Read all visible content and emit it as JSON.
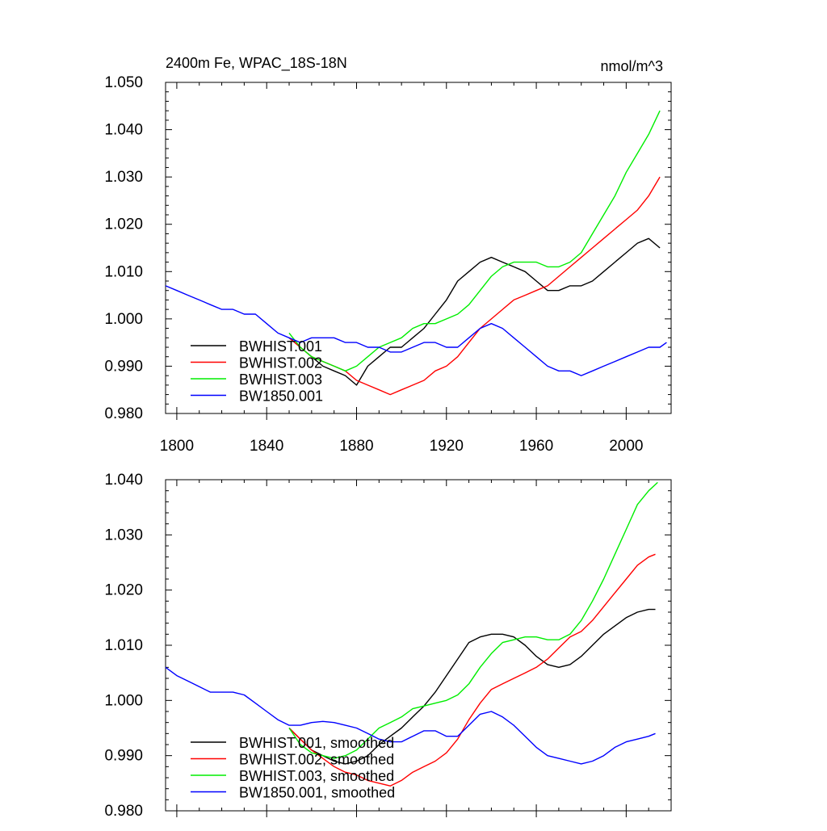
{
  "chart_data": [
    {
      "type": "line",
      "title": "2400m Fe, WPAC_18S-18N",
      "units": "nmol/m^3",
      "xlim": [
        1795,
        2020
      ],
      "ylim": [
        0.98,
        1.05
      ],
      "x_ticks": [
        1800,
        1840,
        1880,
        1920,
        1960,
        2000
      ],
      "y_ticks": [
        "0.980",
        "0.990",
        "1.000",
        "1.010",
        "1.020",
        "1.030",
        "1.040",
        "1.050"
      ],
      "legend_position": "bottom-left",
      "series": [
        {
          "name": "BWHIST.001",
          "color": "#000000",
          "x": [
            1850,
            1855,
            1860,
            1865,
            1870,
            1875,
            1880,
            1885,
            1890,
            1895,
            1900,
            1905,
            1910,
            1915,
            1920,
            1925,
            1930,
            1935,
            1940,
            1945,
            1950,
            1955,
            1960,
            1965,
            1970,
            1975,
            1980,
            1985,
            1990,
            1995,
            2000,
            2005,
            2010,
            2015
          ],
          "y": [
            0.996,
            0.994,
            0.992,
            0.99,
            0.989,
            0.988,
            0.986,
            0.99,
            0.992,
            0.994,
            0.994,
            0.996,
            0.998,
            1.001,
            1.004,
            1.008,
            1.01,
            1.012,
            1.013,
            1.012,
            1.011,
            1.01,
            1.008,
            1.006,
            1.006,
            1.007,
            1.007,
            1.008,
            1.01,
            1.012,
            1.014,
            1.016,
            1.017,
            1.015
          ]
        },
        {
          "name": "BWHIST.002",
          "color": "#ff0000",
          "x": [
            1850,
            1855,
            1860,
            1865,
            1870,
            1875,
            1880,
            1885,
            1890,
            1895,
            1900,
            1905,
            1910,
            1915,
            1920,
            1925,
            1930,
            1935,
            1940,
            1945,
            1950,
            1955,
            1960,
            1965,
            1970,
            1975,
            1980,
            1985,
            1990,
            1995,
            2000,
            2005,
            2010,
            2015
          ],
          "y": [
            0.996,
            0.994,
            0.992,
            0.991,
            0.99,
            0.989,
            0.987,
            0.986,
            0.985,
            0.984,
            0.985,
            0.986,
            0.987,
            0.989,
            0.99,
            0.992,
            0.995,
            0.998,
            1.0,
            1.002,
            1.004,
            1.005,
            1.006,
            1.007,
            1.009,
            1.011,
            1.013,
            1.015,
            1.017,
            1.019,
            1.021,
            1.023,
            1.026,
            1.03
          ]
        },
        {
          "name": "BWHIST.003",
          "color": "#00ee00",
          "x": [
            1850,
            1855,
            1860,
            1865,
            1870,
            1875,
            1880,
            1885,
            1890,
            1895,
            1900,
            1905,
            1910,
            1915,
            1920,
            1925,
            1930,
            1935,
            1940,
            1945,
            1950,
            1955,
            1960,
            1965,
            1970,
            1975,
            1980,
            1985,
            1990,
            1995,
            2000,
            2005,
            2010,
            2015
          ],
          "y": [
            0.997,
            0.994,
            0.992,
            0.991,
            0.99,
            0.989,
            0.99,
            0.992,
            0.994,
            0.995,
            0.996,
            0.998,
            0.999,
            0.999,
            1.0,
            1.001,
            1.003,
            1.006,
            1.009,
            1.011,
            1.012,
            1.012,
            1.012,
            1.011,
            1.011,
            1.012,
            1.014,
            1.018,
            1.022,
            1.026,
            1.031,
            1.035,
            1.039,
            1.044
          ]
        },
        {
          "name": "BW1850.001",
          "color": "#0000ff",
          "x": [
            1795,
            1800,
            1805,
            1810,
            1815,
            1820,
            1825,
            1830,
            1835,
            1840,
            1845,
            1850,
            1855,
            1860,
            1865,
            1870,
            1875,
            1880,
            1885,
            1890,
            1895,
            1900,
            1905,
            1910,
            1915,
            1920,
            1925,
            1930,
            1935,
            1940,
            1945,
            1950,
            1955,
            1960,
            1965,
            1970,
            1975,
            1980,
            1985,
            1990,
            1995,
            2000,
            2005,
            2010,
            2015,
            2018
          ],
          "y": [
            1.007,
            1.006,
            1.005,
            1.004,
            1.003,
            1.002,
            1.002,
            1.001,
            1.001,
            0.999,
            0.997,
            0.996,
            0.995,
            0.996,
            0.996,
            0.996,
            0.995,
            0.995,
            0.994,
            0.994,
            0.993,
            0.993,
            0.994,
            0.995,
            0.995,
            0.994,
            0.994,
            0.996,
            0.998,
            0.999,
            0.998,
            0.996,
            0.994,
            0.992,
            0.99,
            0.989,
            0.989,
            0.988,
            0.989,
            0.99,
            0.991,
            0.992,
            0.993,
            0.994,
            0.994,
            0.995
          ]
        }
      ]
    },
    {
      "type": "line",
      "title": "",
      "units": "",
      "xlim": [
        1795,
        2020
      ],
      "ylim": [
        0.98,
        1.04
      ],
      "x_ticks": [],
      "y_ticks": [
        "0.980",
        "0.990",
        "1.000",
        "1.010",
        "1.020",
        "1.030",
        "1.040"
      ],
      "legend_position": "bottom-left",
      "series": [
        {
          "name": "BWHIST.001, smoothed",
          "color": "#000000",
          "x": [
            1850,
            1855,
            1860,
            1865,
            1870,
            1875,
            1880,
            1885,
            1890,
            1895,
            1900,
            1905,
            1910,
            1915,
            1920,
            1925,
            1930,
            1935,
            1940,
            1945,
            1950,
            1955,
            1960,
            1965,
            1970,
            1975,
            1980,
            1985,
            1990,
            1995,
            2000,
            2005,
            2010,
            2013
          ],
          "y": [
            0.995,
            0.993,
            0.991,
            0.99,
            0.989,
            0.9885,
            0.989,
            0.99,
            0.992,
            0.9935,
            0.995,
            0.997,
            0.999,
            1.0015,
            1.0045,
            1.0075,
            1.0105,
            1.0115,
            1.012,
            1.012,
            1.0115,
            1.01,
            1.008,
            1.0065,
            1.006,
            1.0065,
            1.008,
            1.01,
            1.012,
            1.0135,
            1.015,
            1.016,
            1.0165,
            1.0165
          ]
        },
        {
          "name": "BWHIST.002, smoothed",
          "color": "#ff0000",
          "x": [
            1850,
            1855,
            1860,
            1865,
            1870,
            1875,
            1880,
            1885,
            1890,
            1895,
            1900,
            1905,
            1910,
            1915,
            1920,
            1925,
            1930,
            1935,
            1940,
            1945,
            1950,
            1955,
            1960,
            1965,
            1970,
            1975,
            1980,
            1985,
            1990,
            1995,
            2000,
            2005,
            2010,
            2013
          ],
          "y": [
            0.995,
            0.993,
            0.991,
            0.9895,
            0.988,
            0.987,
            0.9865,
            0.9855,
            0.985,
            0.9845,
            0.9855,
            0.987,
            0.988,
            0.989,
            0.9905,
            0.993,
            0.9965,
            0.9995,
            1.002,
            1.003,
            1.004,
            1.005,
            1.006,
            1.0075,
            1.0095,
            1.0115,
            1.0125,
            1.0145,
            1.017,
            1.0195,
            1.022,
            1.0245,
            1.026,
            1.0265
          ]
        },
        {
          "name": "BWHIST.003, smoothed",
          "color": "#00ee00",
          "x": [
            1850,
            1855,
            1860,
            1865,
            1870,
            1875,
            1880,
            1885,
            1890,
            1895,
            1900,
            1905,
            1910,
            1915,
            1920,
            1925,
            1930,
            1935,
            1940,
            1945,
            1950,
            1955,
            1960,
            1965,
            1970,
            1975,
            1980,
            1985,
            1990,
            1995,
            2000,
            2005,
            2010,
            2014
          ],
          "y": [
            0.995,
            0.992,
            0.9905,
            0.99,
            0.9895,
            0.99,
            0.991,
            0.993,
            0.995,
            0.996,
            0.997,
            0.9985,
            0.999,
            0.9995,
            1.0,
            1.001,
            1.003,
            1.006,
            1.0085,
            1.0105,
            1.011,
            1.0115,
            1.0115,
            1.011,
            1.011,
            1.012,
            1.0145,
            1.018,
            1.022,
            1.0265,
            1.031,
            1.0355,
            1.038,
            1.0395
          ]
        },
        {
          "name": "BW1850.001, smoothed",
          "color": "#0000ff",
          "x": [
            1795,
            1800,
            1805,
            1810,
            1815,
            1820,
            1825,
            1830,
            1835,
            1840,
            1845,
            1850,
            1855,
            1860,
            1865,
            1870,
            1875,
            1880,
            1885,
            1890,
            1895,
            1900,
            1905,
            1910,
            1915,
            1920,
            1925,
            1930,
            1935,
            1940,
            1945,
            1950,
            1955,
            1960,
            1965,
            1970,
            1975,
            1980,
            1985,
            1990,
            1995,
            2000,
            2005,
            2010,
            2013
          ],
          "y": [
            1.006,
            1.0045,
            1.0035,
            1.0025,
            1.0015,
            1.0015,
            1.0015,
            1.001,
            0.9995,
            0.998,
            0.9965,
            0.9955,
            0.9955,
            0.996,
            0.9962,
            0.996,
            0.9955,
            0.995,
            0.994,
            0.993,
            0.9925,
            0.9925,
            0.9935,
            0.9945,
            0.9945,
            0.9935,
            0.9935,
            0.9955,
            0.9975,
            0.998,
            0.997,
            0.9955,
            0.9935,
            0.9915,
            0.99,
            0.9895,
            0.989,
            0.9885,
            0.989,
            0.99,
            0.9915,
            0.9925,
            0.993,
            0.9935,
            0.994
          ]
        }
      ]
    }
  ]
}
